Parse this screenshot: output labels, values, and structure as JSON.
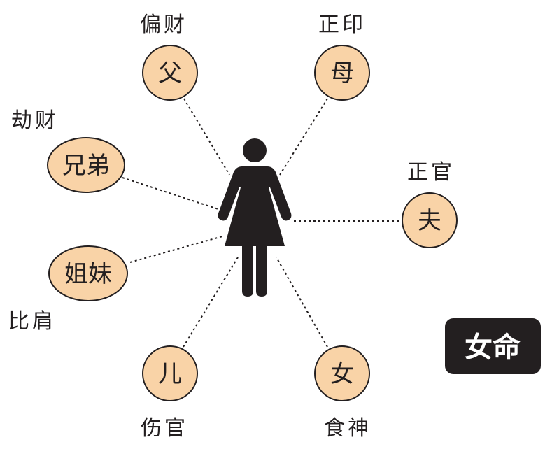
{
  "badge": {
    "text": "女命"
  },
  "nodes": [
    {
      "id": "father",
      "relation": "父",
      "role": "偏财"
    },
    {
      "id": "mother",
      "relation": "母",
      "role": "正印"
    },
    {
      "id": "brother",
      "relation": "兄弟",
      "role": "劫财"
    },
    {
      "id": "husband",
      "relation": "夫",
      "role": "正官"
    },
    {
      "id": "sister",
      "relation": "姐妹",
      "role": "比肩"
    },
    {
      "id": "son",
      "relation": "儿",
      "role": "伤官"
    },
    {
      "id": "daughter",
      "relation": "女",
      "role": "食神"
    }
  ],
  "colors": {
    "node_fill": "#f9d3a7",
    "node_stroke": "#231f20",
    "figure": "#231f20",
    "badge_bg": "#231f20"
  },
  "icons": {
    "center": "woman-icon"
  }
}
